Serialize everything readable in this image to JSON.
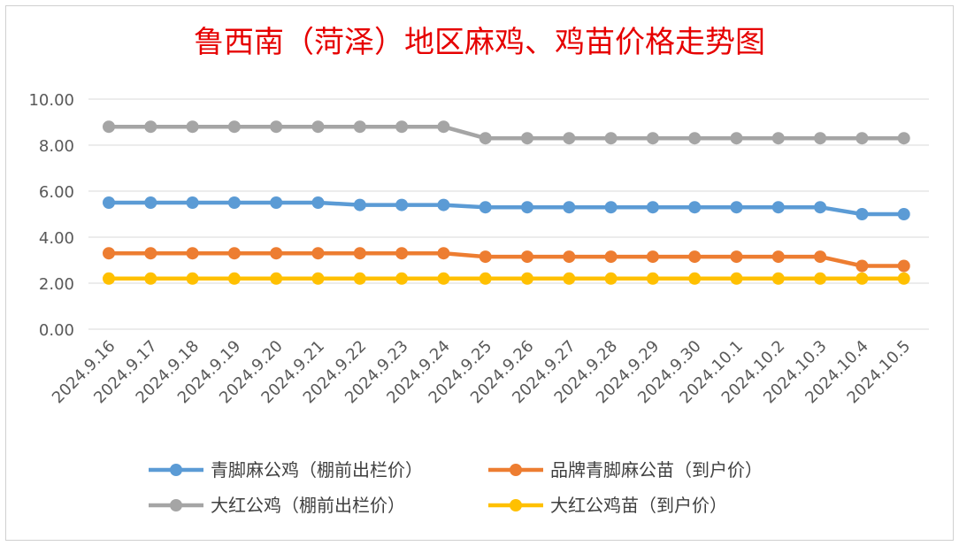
{
  "chart_data": {
    "type": "line",
    "title": "鲁西南（菏泽）地区麻鸡、鸡苗价格走势图",
    "xlabel": "",
    "ylabel": "",
    "ylim": [
      0,
      10
    ],
    "y_ticks": [
      "0.00",
      "2.00",
      "4.00",
      "6.00",
      "8.00",
      "10.00"
    ],
    "grid": true,
    "legend_position": "bottom",
    "categories": [
      "2024.9.16",
      "2024.9.17",
      "2024.9.18",
      "2024.9.19",
      "2024.9.20",
      "2024.9.21",
      "2024.9.22",
      "2024.9.23",
      "2024.9.24",
      "2024.9.25",
      "2024.9.26",
      "2024.9.27",
      "2024.9.28",
      "2024.9.29",
      "2024.9.30",
      "2024.10.1",
      "2024.10.2",
      "2024.10.3",
      "2024.10.4",
      "2024.10.5"
    ],
    "series": [
      {
        "name": "青脚麻公鸡（棚前出栏价）",
        "color": "#5b9bd5",
        "values": [
          5.5,
          5.5,
          5.5,
          5.5,
          5.5,
          5.5,
          5.4,
          5.4,
          5.4,
          5.3,
          5.3,
          5.3,
          5.3,
          5.3,
          5.3,
          5.3,
          5.3,
          5.3,
          5.0,
          5.0
        ]
      },
      {
        "name": "品牌青脚麻公苗（到户价）",
        "color": "#ed7d31",
        "values": [
          3.3,
          3.3,
          3.3,
          3.3,
          3.3,
          3.3,
          3.3,
          3.3,
          3.3,
          3.15,
          3.15,
          3.15,
          3.15,
          3.15,
          3.15,
          3.15,
          3.15,
          3.15,
          2.75,
          2.75
        ]
      },
      {
        "name": "大红公鸡（棚前出栏价）",
        "color": "#a5a5a5",
        "values": [
          8.8,
          8.8,
          8.8,
          8.8,
          8.8,
          8.8,
          8.8,
          8.8,
          8.8,
          8.3,
          8.3,
          8.3,
          8.3,
          8.3,
          8.3,
          8.3,
          8.3,
          8.3,
          8.3,
          8.3
        ]
      },
      {
        "name": "大红公鸡苗（到户价）",
        "color": "#ffc000",
        "values": [
          2.2,
          2.2,
          2.2,
          2.2,
          2.2,
          2.2,
          2.2,
          2.2,
          2.2,
          2.2,
          2.2,
          2.2,
          2.2,
          2.2,
          2.2,
          2.2,
          2.2,
          2.2,
          2.2,
          2.2
        ]
      }
    ]
  }
}
